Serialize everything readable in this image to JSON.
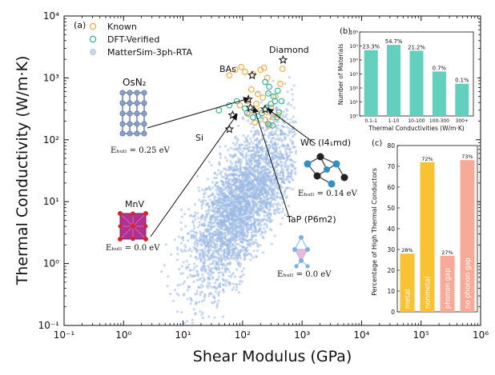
{
  "chart_data": [
    {
      "type": "scatter",
      "panel_label": "(a)",
      "xlabel": "Shear Modulus (GPa)",
      "ylabel": "Thermal Conductivity (W/m·K)",
      "x_scale": "log",
      "y_scale": "log",
      "xlim": [
        0.1,
        1000000
      ],
      "ylim": [
        0.1,
        10000
      ],
      "x_ticks": [
        "10⁻¹",
        "10⁰",
        "10¹",
        "10²",
        "10³",
        "10⁴",
        "10⁵",
        "10⁶"
      ],
      "y_ticks": [
        "10⁻¹",
        "10⁰",
        "10¹",
        "10²",
        "10³",
        "10⁴"
      ],
      "legend": {
        "placement": "top-left",
        "entries": [
          {
            "label": "Known",
            "color": "#f2a93b",
            "marker": "open-circle"
          },
          {
            "label": "DFT-Verified",
            "color": "#2bb09a",
            "marker": "open-circle"
          },
          {
            "label": "MatterSim-3ph-RTA",
            "color": "#9db9e3",
            "marker": "filled-circle"
          }
        ]
      },
      "series": [
        {
          "name": "Known",
          "points": [
            [
              60,
              1100
            ],
            [
              75,
              1350
            ],
            [
              95,
              1500
            ],
            [
              110,
              1250
            ],
            [
              150,
              1150
            ],
            [
              200,
              1350
            ],
            [
              230,
              1450
            ],
            [
              260,
              1000
            ],
            [
              140,
              650
            ],
            [
              180,
              550
            ],
            [
              220,
              480
            ],
            [
              120,
              420
            ],
            [
              170,
              380
            ],
            [
              300,
              330
            ],
            [
              260,
              280
            ],
            [
              90,
              360
            ],
            [
              200,
              300
            ],
            [
              330,
              230
            ],
            [
              280,
              170
            ],
            [
              130,
              260
            ],
            [
              240,
              210
            ],
            [
              160,
              190
            ],
            [
              400,
              250
            ],
            [
              360,
              500
            ],
            [
              430,
              800
            ],
            [
              470,
              1400
            ]
          ]
        },
        {
          "name": "DFT-Verified",
          "points": [
            [
              240,
              860
            ],
            [
              280,
              720
            ],
            [
              270,
              560
            ],
            [
              330,
              500
            ],
            [
              350,
              420
            ],
            [
              300,
              380
            ],
            [
              250,
              330
            ],
            [
              210,
              270
            ],
            [
              180,
              240
            ],
            [
              150,
              230
            ],
            [
              120,
              270
            ],
            [
              110,
              320
            ],
            [
              80,
              420
            ],
            [
              60,
              360
            ],
            [
              40,
              300
            ],
            [
              270,
              180
            ],
            [
              320,
              170
            ],
            [
              380,
              230
            ],
            [
              410,
              280
            ],
            [
              450,
              420
            ],
            [
              390,
              620
            ]
          ]
        },
        {
          "name": "MatterSim-3ph-RTA",
          "cloud": true,
          "note_center": [
            100,
            10
          ]
        }
      ],
      "highlighted_materials": [
        {
          "name": "Diamond",
          "x": 480,
          "y": 1950
        },
        {
          "name": "BAs",
          "x": 145,
          "y": 1100
        },
        {
          "name": "Si",
          "x": 60,
          "y": 148
        },
        {
          "name": "OsN₂",
          "x": 125,
          "y": 450,
          "ehull": "Eₕᵤₗₗ = 0.25 eV"
        },
        {
          "name": "WC (I4₁md)",
          "x": 240,
          "y": 310,
          "ehull": "Eₕᵤₗₗ = 0.14 eV"
        },
        {
          "name": "MnV",
          "x": 68,
          "y": 250,
          "ehull": "Eₕᵤₗₗ = 0.0 eV"
        },
        {
          "name": "TaP (P6m2)",
          "x": 135,
          "y": 330,
          "ehull": "Eₕᵤₗₗ = 0.0 eV"
        }
      ]
    },
    {
      "type": "bar",
      "panel_label": "(b)",
      "xlabel": "Thermal Conductivities (W/m·K)",
      "ylabel": "Number of Materials",
      "y_scale": "log",
      "ylim": [
        1,
        1000000
      ],
      "y_ticks": [
        "10⁰",
        "10¹",
        "10²",
        "10³",
        "10⁴",
        "10⁵",
        "10⁶"
      ],
      "categories": [
        "0.1-1",
        "1-10",
        "10-100",
        "100-300",
        "300+"
      ],
      "values": [
        51000,
        120000,
        46000,
        1500,
        200
      ],
      "labels": [
        "23.3%",
        "54.7%",
        "21.2%",
        "0.7%",
        "0.1%"
      ],
      "color": "#62d0bc"
    },
    {
      "type": "bar",
      "panel_label": "(c)",
      "ylabel": "Percentage of High Thermal Conductors",
      "ylim": [
        0,
        80
      ],
      "y_ticks": [
        "0",
        "10",
        "20",
        "30",
        "40",
        "50",
        "60",
        "70",
        "80"
      ],
      "categories": [
        "metal",
        "nonmetal",
        "phonon gap",
        "no phonon gap"
      ],
      "values": [
        28,
        72,
        27,
        73
      ],
      "labels": [
        "28%",
        "72%",
        "27%",
        "73%"
      ],
      "colors": [
        "#f8c232",
        "#f8c232",
        "#f7aa98",
        "#f7aa98"
      ]
    }
  ]
}
